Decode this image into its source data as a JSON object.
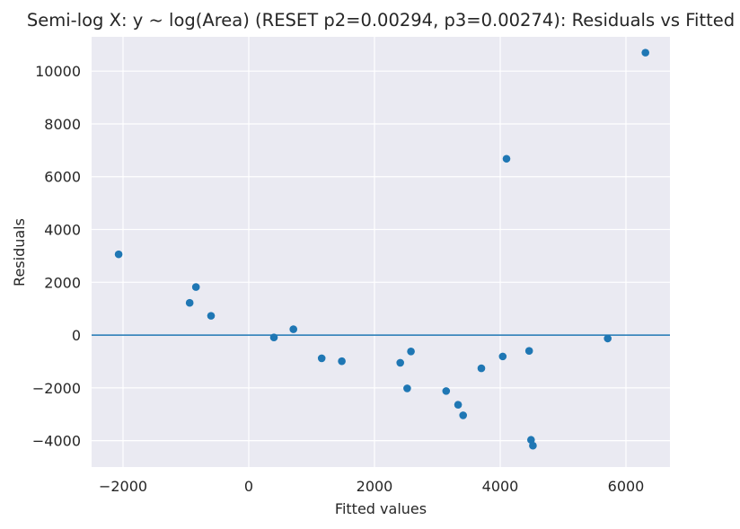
{
  "chart_data": {
    "type": "scatter",
    "title": "Semi-log X: y ~ log(Area) (RESET p2=0.00294, p3=0.00274): Residuals vs Fitted",
    "xlabel": "Fitted values",
    "ylabel": "Residuals",
    "xlim": [
      -2500,
      6700
    ],
    "ylim": [
      -5000,
      11300
    ],
    "xticks": [
      -2000,
      0,
      2000,
      4000,
      6000
    ],
    "xtick_labels": [
      "−2000",
      "0",
      "2000",
      "4000",
      "6000"
    ],
    "yticks": [
      -4000,
      -2000,
      0,
      2000,
      4000,
      6000,
      8000,
      10000
    ],
    "ytick_labels": [
      "−4000",
      "−2000",
      "0",
      "2000",
      "4000",
      "6000",
      "8000",
      "10000"
    ],
    "grid": true,
    "reference_line_y": 0,
    "colors": {
      "background": "#eaeaf2",
      "grid": "#ffffff",
      "points": "#1f77b4",
      "reference_line": "#1f77b4"
    },
    "points": [
      {
        "x": -2070,
        "y": 3060
      },
      {
        "x": -940,
        "y": 1220
      },
      {
        "x": -840,
        "y": 1820
      },
      {
        "x": -600,
        "y": 730
      },
      {
        "x": 400,
        "y": -90
      },
      {
        "x": 710,
        "y": 220
      },
      {
        "x": 1160,
        "y": -880
      },
      {
        "x": 1480,
        "y": -990
      },
      {
        "x": 2410,
        "y": -1050
      },
      {
        "x": 2520,
        "y": -2020
      },
      {
        "x": 2580,
        "y": -620
      },
      {
        "x": 3140,
        "y": -2120
      },
      {
        "x": 3330,
        "y": -2640
      },
      {
        "x": 3410,
        "y": -3040
      },
      {
        "x": 3700,
        "y": -1260
      },
      {
        "x": 4040,
        "y": -810
      },
      {
        "x": 4100,
        "y": 6680
      },
      {
        "x": 4460,
        "y": -600
      },
      {
        "x": 4490,
        "y": -3970
      },
      {
        "x": 4520,
        "y": -4190
      },
      {
        "x": 5710,
        "y": -130
      },
      {
        "x": 6310,
        "y": 10700
      }
    ]
  }
}
